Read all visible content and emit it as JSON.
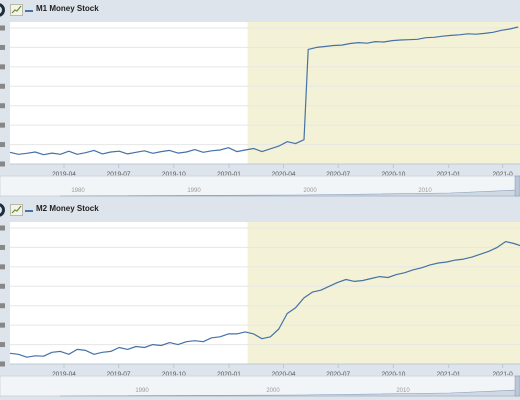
{
  "colors": {
    "line": "#4572a7",
    "recession_band": "#f4f2d6",
    "navigator_fill": "#cfd8e3",
    "background": "#dde4ec"
  },
  "icons": [
    "logo-icon",
    "chart-thumbnail-icon"
  ],
  "chart_data": [
    {
      "type": "line",
      "series": [
        {
          "name": "M1 Money Stock"
        }
      ],
      "x_tick_labels": [
        "2019-04",
        "2019-07",
        "2019-10",
        "2020-01",
        "2020-04",
        "2020-07",
        "2020-10",
        "2021-01",
        "2021-0"
      ],
      "x_ticks": [
        "2019-04-01",
        "2019-07-01",
        "2019-10-01",
        "2020-01-01",
        "2020-04-01",
        "2020-07-01",
        "2020-10-01",
        "2021-01-01",
        "2021-04-01"
      ],
      "shaded_region": [
        "2020-02-01",
        "2021-04-30"
      ],
      "x_range": [
        "2019-01-01",
        "2021-04-30"
      ],
      "y_range": [
        0,
        7
      ],
      "grid": true,
      "legend": "top-left",
      "points": [
        [
          "2019-01-01",
          0.6
        ],
        [
          "2019-01-15",
          0.5
        ],
        [
          "2019-01-29",
          0.55
        ],
        [
          "2019-02-12",
          0.62
        ],
        [
          "2019-02-26",
          0.48
        ],
        [
          "2019-03-12",
          0.56
        ],
        [
          "2019-03-26",
          0.5
        ],
        [
          "2019-04-09",
          0.66
        ],
        [
          "2019-04-23",
          0.5
        ],
        [
          "2019-05-07",
          0.58
        ],
        [
          "2019-05-21",
          0.7
        ],
        [
          "2019-06-04",
          0.52
        ],
        [
          "2019-06-18",
          0.62
        ],
        [
          "2019-07-02",
          0.66
        ],
        [
          "2019-07-16",
          0.52
        ],
        [
          "2019-07-30",
          0.6
        ],
        [
          "2019-08-13",
          0.68
        ],
        [
          "2019-08-27",
          0.55
        ],
        [
          "2019-09-10",
          0.64
        ],
        [
          "2019-09-24",
          0.7
        ],
        [
          "2019-10-08",
          0.56
        ],
        [
          "2019-10-22",
          0.62
        ],
        [
          "2019-11-05",
          0.74
        ],
        [
          "2019-11-19",
          0.6
        ],
        [
          "2019-12-03",
          0.68
        ],
        [
          "2019-12-17",
          0.72
        ],
        [
          "2019-12-31",
          0.84
        ],
        [
          "2020-01-14",
          0.64
        ],
        [
          "2020-01-28",
          0.72
        ],
        [
          "2020-02-11",
          0.8
        ],
        [
          "2020-02-25",
          0.64
        ],
        [
          "2020-03-10",
          0.78
        ],
        [
          "2020-03-24",
          0.92
        ],
        [
          "2020-04-07",
          1.15
        ],
        [
          "2020-04-21",
          1.05
        ],
        [
          "2020-05-05",
          1.25
        ],
        [
          "2020-05-12",
          5.9
        ],
        [
          "2020-05-26",
          6.0
        ],
        [
          "2020-06-09",
          6.05
        ],
        [
          "2020-06-23",
          6.1
        ],
        [
          "2020-07-07",
          6.12
        ],
        [
          "2020-07-21",
          6.2
        ],
        [
          "2020-08-04",
          6.25
        ],
        [
          "2020-08-18",
          6.22
        ],
        [
          "2020-09-01",
          6.3
        ],
        [
          "2020-09-15",
          6.28
        ],
        [
          "2020-09-29",
          6.35
        ],
        [
          "2020-10-13",
          6.38
        ],
        [
          "2020-10-27",
          6.4
        ],
        [
          "2020-11-10",
          6.42
        ],
        [
          "2020-11-24",
          6.5
        ],
        [
          "2020-12-08",
          6.52
        ],
        [
          "2020-12-22",
          6.58
        ],
        [
          "2021-01-05",
          6.62
        ],
        [
          "2021-01-19",
          6.65
        ],
        [
          "2021-02-02",
          6.7
        ],
        [
          "2021-02-16",
          6.68
        ],
        [
          "2021-03-02",
          6.72
        ],
        [
          "2021-03-16",
          6.78
        ],
        [
          "2021-03-30",
          6.88
        ],
        [
          "2021-04-13",
          6.95
        ],
        [
          "2021-04-27",
          7.05
        ]
      ],
      "navigator_labels": [
        "1980",
        "1990",
        "2000",
        "2010"
      ]
    },
    {
      "type": "line",
      "series": [
        {
          "name": "M2 Money Stock"
        }
      ],
      "x_tick_labels": [
        "2019-04",
        "2019-07",
        "2019-10",
        "2020-01",
        "2020-04",
        "2020-07",
        "2020-10",
        "2021-01",
        "2021-0"
      ],
      "x_ticks": [
        "2019-04-01",
        "2019-07-01",
        "2019-10-01",
        "2020-01-01",
        "2020-04-01",
        "2020-07-01",
        "2020-10-01",
        "2021-01-01",
        "2021-04-01"
      ],
      "shaded_region": [
        "2020-02-01",
        "2021-04-30"
      ],
      "x_range": [
        "2019-01-01",
        "2021-04-30"
      ],
      "y_range": [
        0,
        7
      ],
      "grid": true,
      "legend": "top-left",
      "points": [
        [
          "2019-01-01",
          0.55
        ],
        [
          "2019-01-15",
          0.5
        ],
        [
          "2019-01-29",
          0.35
        ],
        [
          "2019-02-12",
          0.42
        ],
        [
          "2019-02-26",
          0.4
        ],
        [
          "2019-03-12",
          0.6
        ],
        [
          "2019-03-26",
          0.65
        ],
        [
          "2019-04-09",
          0.5
        ],
        [
          "2019-04-23",
          0.75
        ],
        [
          "2019-05-07",
          0.7
        ],
        [
          "2019-05-21",
          0.5
        ],
        [
          "2019-06-04",
          0.6
        ],
        [
          "2019-06-18",
          0.65
        ],
        [
          "2019-07-02",
          0.85
        ],
        [
          "2019-07-16",
          0.75
        ],
        [
          "2019-07-30",
          0.9
        ],
        [
          "2019-08-13",
          0.85
        ],
        [
          "2019-08-27",
          1.0
        ],
        [
          "2019-09-10",
          0.95
        ],
        [
          "2019-09-24",
          1.1
        ],
        [
          "2019-10-08",
          1.0
        ],
        [
          "2019-10-22",
          1.15
        ],
        [
          "2019-11-05",
          1.2
        ],
        [
          "2019-11-19",
          1.15
        ],
        [
          "2019-12-03",
          1.35
        ],
        [
          "2019-12-17",
          1.4
        ],
        [
          "2019-12-31",
          1.55
        ],
        [
          "2020-01-14",
          1.55
        ],
        [
          "2020-01-28",
          1.65
        ],
        [
          "2020-02-11",
          1.55
        ],
        [
          "2020-02-25",
          1.3
        ],
        [
          "2020-03-10",
          1.4
        ],
        [
          "2020-03-24",
          1.8
        ],
        [
          "2020-04-07",
          2.6
        ],
        [
          "2020-04-21",
          2.9
        ],
        [
          "2020-05-05",
          3.4
        ],
        [
          "2020-05-19",
          3.7
        ],
        [
          "2020-06-02",
          3.8
        ],
        [
          "2020-06-16",
          4.0
        ],
        [
          "2020-06-30",
          4.2
        ],
        [
          "2020-07-14",
          4.35
        ],
        [
          "2020-07-28",
          4.25
        ],
        [
          "2020-08-11",
          4.3
        ],
        [
          "2020-08-25",
          4.4
        ],
        [
          "2020-09-08",
          4.5
        ],
        [
          "2020-09-22",
          4.45
        ],
        [
          "2020-10-06",
          4.6
        ],
        [
          "2020-10-20",
          4.7
        ],
        [
          "2020-11-03",
          4.85
        ],
        [
          "2020-11-17",
          4.95
        ],
        [
          "2020-12-01",
          5.1
        ],
        [
          "2020-12-15",
          5.2
        ],
        [
          "2020-12-29",
          5.25
        ],
        [
          "2021-01-12",
          5.35
        ],
        [
          "2021-01-26",
          5.4
        ],
        [
          "2021-02-09",
          5.5
        ],
        [
          "2021-02-23",
          5.65
        ],
        [
          "2021-03-09",
          5.8
        ],
        [
          "2021-03-23",
          6.0
        ],
        [
          "2021-04-06",
          6.3
        ],
        [
          "2021-04-20",
          6.2
        ],
        [
          "2021-04-30",
          6.1
        ]
      ],
      "navigator_labels": [
        "1990",
        "2000",
        "2010"
      ]
    }
  ]
}
